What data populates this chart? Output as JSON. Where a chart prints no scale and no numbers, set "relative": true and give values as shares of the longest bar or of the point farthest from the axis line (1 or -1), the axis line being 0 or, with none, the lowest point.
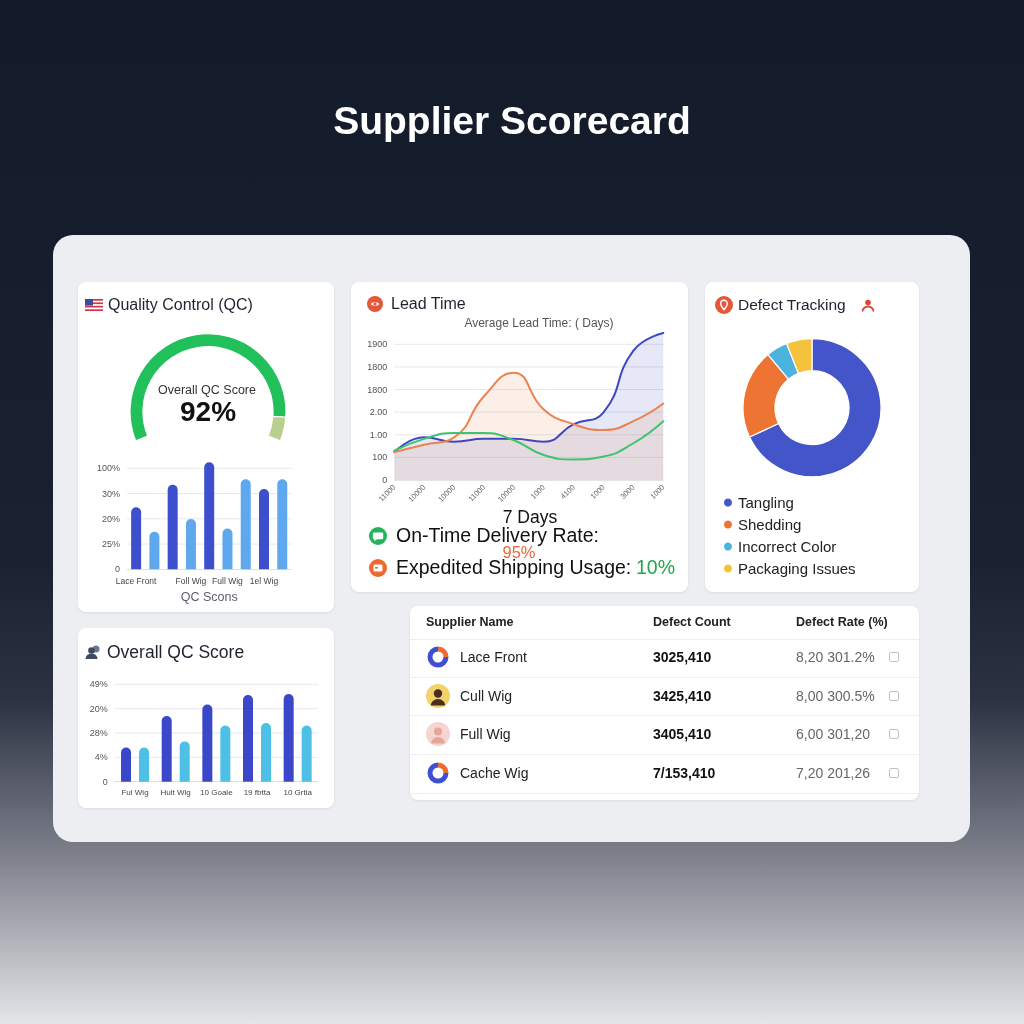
{
  "chart_data": [
    {
      "type": "other",
      "title": "Supplier Scorecard"
    },
    {
      "type": "donut",
      "title": "Quality Control (QC)",
      "annotations": [
        "Overall QC Score"
      ],
      "categories": [
        null,
        null
      ],
      "values": [
        92,
        8
      ],
      "colors": [
        "#22c05a",
        "#b8cf8d"
      ],
      "value_labels": [
        "92%",
        null
      ]
    },
    {
      "type": "bar",
      "xlabel": "QC Scons",
      "categories": [
        "Lace Front",
        null,
        null,
        "Foll Wig",
        null,
        "Full Wig",
        null,
        "1el Wig",
        null
      ],
      "relative": true,
      "values": [
        0.58,
        0.35,
        0.79,
        0.47,
        1,
        0.38,
        0.84,
        0.75,
        0.84
      ],
      "colors": [
        "#3d4fcc",
        "#5fa8ee",
        "#3d4fcc",
        "#5fa8ee",
        "#3d4fcc",
        "#5fa8ee",
        "#5fa8ee",
        "#3d4fcc",
        "#5fa8ee"
      ],
      "grid": "y",
      "annotations": [
        "100%",
        "30%",
        "20%",
        "25%",
        "0"
      ]
    },
    {
      "type": "line",
      "title": "Lead Time",
      "subtitle": "Average Lead Time: ( Days)",
      "categories": [
        "11000",
        "10000",
        "10000",
        "11000",
        "10000",
        "1000",
        "4100",
        "1000",
        "3000",
        "1000"
      ],
      "relative": true,
      "series": [
        {
          "type": "area",
          "color": "#3f47bf",
          "values": [
            0.19,
            0.29,
            0.26,
            0.28,
            0.28,
            0.26,
            0.38,
            0.46,
            0.88,
            1
          ]
        },
        {
          "type": "area",
          "color": "#e9834f",
          "values": [
            0.19,
            0.24,
            0.29,
            0.57,
            0.73,
            0.48,
            0.38,
            0.34,
            0.4,
            0.52
          ]
        },
        {
          "type": "line",
          "color": "#3dc46f",
          "values": [
            0.2,
            0.28,
            0.32,
            0.32,
            0.27,
            0.17,
            0.14,
            0.16,
            0.25,
            0.4
          ]
        }
      ],
      "grid": "y",
      "marker": "none",
      "annotations": [
        "1900",
        "1800",
        "1800",
        "2.00",
        "1.00",
        "100",
        "0",
        "7 Days",
        "On-Time Delivery Rate:",
        "95%",
        "Expedited Shipping Usage:",
        "10%"
      ]
    },
    {
      "type": "donut",
      "title": "Defect Tracking",
      "categories": [
        "Tangling",
        "Shedding",
        "Incorrect Color",
        "Packaging Issues"
      ],
      "values": [
        68,
        21,
        5,
        6
      ],
      "colors": [
        "#4455c9",
        "#ee7433",
        "#4cb3de",
        "#f4c23c"
      ],
      "legend": "bottom"
    },
    {
      "type": "bar",
      "title": "Overall QC Score",
      "categories": [
        "Ful Wig",
        "Hult Wig",
        "10 Goale",
        "19 fbtta",
        "10 Grtia"
      ],
      "relative": true,
      "series": [
        {
          "color": "#3a47c8",
          "values": [
            0.39,
            0.75,
            0.88,
            0.99,
            1
          ]
        },
        {
          "color": "#4ec0e6",
          "values": [
            0.39,
            0.46,
            0.64,
            0.67,
            0.64
          ]
        }
      ],
      "grid": "y",
      "annotations": [
        "49%",
        "20%",
        "28%",
        "4%",
        "0"
      ]
    },
    {
      "type": "other",
      "annotations": [
        "Supplier Name",
        "Defect Count",
        "Defect Rate (%)",
        "Lace Front",
        "3025,410",
        "8,20 301.2%",
        "Cull Wig",
        "3425,410",
        "8,00 300.5%",
        "Full Wig",
        "3405,410",
        "6,00 301,20",
        "Cache Wig",
        "7/153,410",
        "7,20 201,26"
      ]
    }
  ]
}
